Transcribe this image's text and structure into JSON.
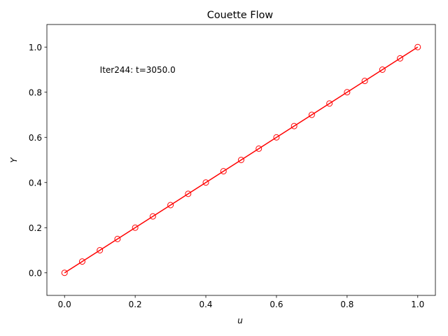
{
  "chart_data": {
    "type": "line",
    "title": "Couette Flow",
    "xlabel": "u",
    "ylabel": "Y",
    "xlim": [
      -0.05,
      1.05
    ],
    "ylim": [
      -0.1,
      1.1
    ],
    "xticks": [
      "0.0",
      "0.2",
      "0.4",
      "0.6",
      "0.8",
      "1.0"
    ],
    "yticks": [
      "0.0",
      "0.2",
      "0.4",
      "0.6",
      "0.8",
      "1.0"
    ],
    "grid": false,
    "annotation": "Iter244: t=3050.0",
    "series": [
      {
        "color": "#ff0000",
        "marker": "open-circle",
        "x": [
          0.0,
          0.05,
          0.1,
          0.15,
          0.2,
          0.25,
          0.3,
          0.35,
          0.4,
          0.45,
          0.5,
          0.55,
          0.6,
          0.65,
          0.7,
          0.75,
          0.8,
          0.85,
          0.9,
          0.95,
          1.0
        ],
        "y": [
          0.0,
          0.05,
          0.1,
          0.15,
          0.2,
          0.25,
          0.3,
          0.35,
          0.4,
          0.45,
          0.5,
          0.55,
          0.6,
          0.65,
          0.7,
          0.75,
          0.8,
          0.85,
          0.9,
          0.95,
          1.0
        ]
      }
    ]
  }
}
